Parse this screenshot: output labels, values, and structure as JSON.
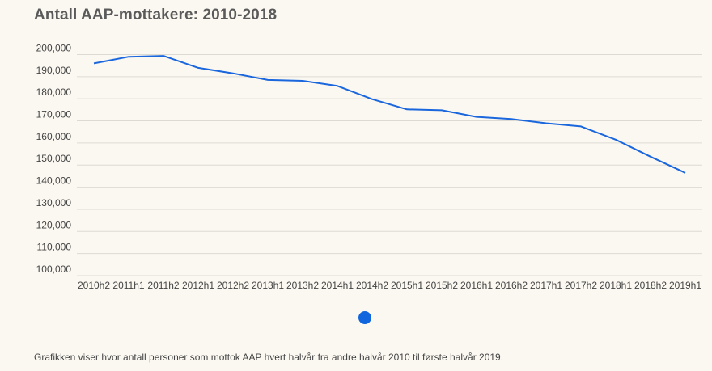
{
  "chart_data": {
    "type": "line",
    "title": "Antall AAP-mottakere: 2010-2018",
    "caption": "Grafikken viser hvor antall personer som mottok AAP hvert halvår fra andre halvår 2010 til første halvår 2019.",
    "xlabel": "",
    "ylabel": "",
    "categories": [
      "2010h2",
      "2011h1",
      "2011h2",
      "2012h1",
      "2012h2",
      "2013h1",
      "2013h2",
      "2014h1",
      "2014h2",
      "2015h1",
      "2015h2",
      "2016h1",
      "2016h2",
      "2017h1",
      "2017h2",
      "2018h1",
      "2018h2",
      "2019h1"
    ],
    "series": [
      {
        "color": "#1a66dd",
        "values": [
          196000,
          199000,
          199400,
          194000,
          191500,
          188500,
          188100,
          185800,
          179800,
          175200,
          174800,
          171800,
          170800,
          168900,
          167500,
          161500,
          153800,
          146500
        ]
      }
    ],
    "yticks": [
      100000,
      110000,
      120000,
      130000,
      140000,
      150000,
      160000,
      170000,
      180000,
      190000,
      200000
    ],
    "ytick_labels": [
      "100,000",
      "110,000",
      "120,000",
      "130,000",
      "140,000",
      "150,000",
      "160,000",
      "170,000",
      "180,000",
      "190,000",
      "200,000"
    ],
    "ylim": [
      100000,
      202000
    ],
    "grid": true,
    "legend": "none"
  },
  "pager": {
    "active_color": "#1166dd"
  }
}
